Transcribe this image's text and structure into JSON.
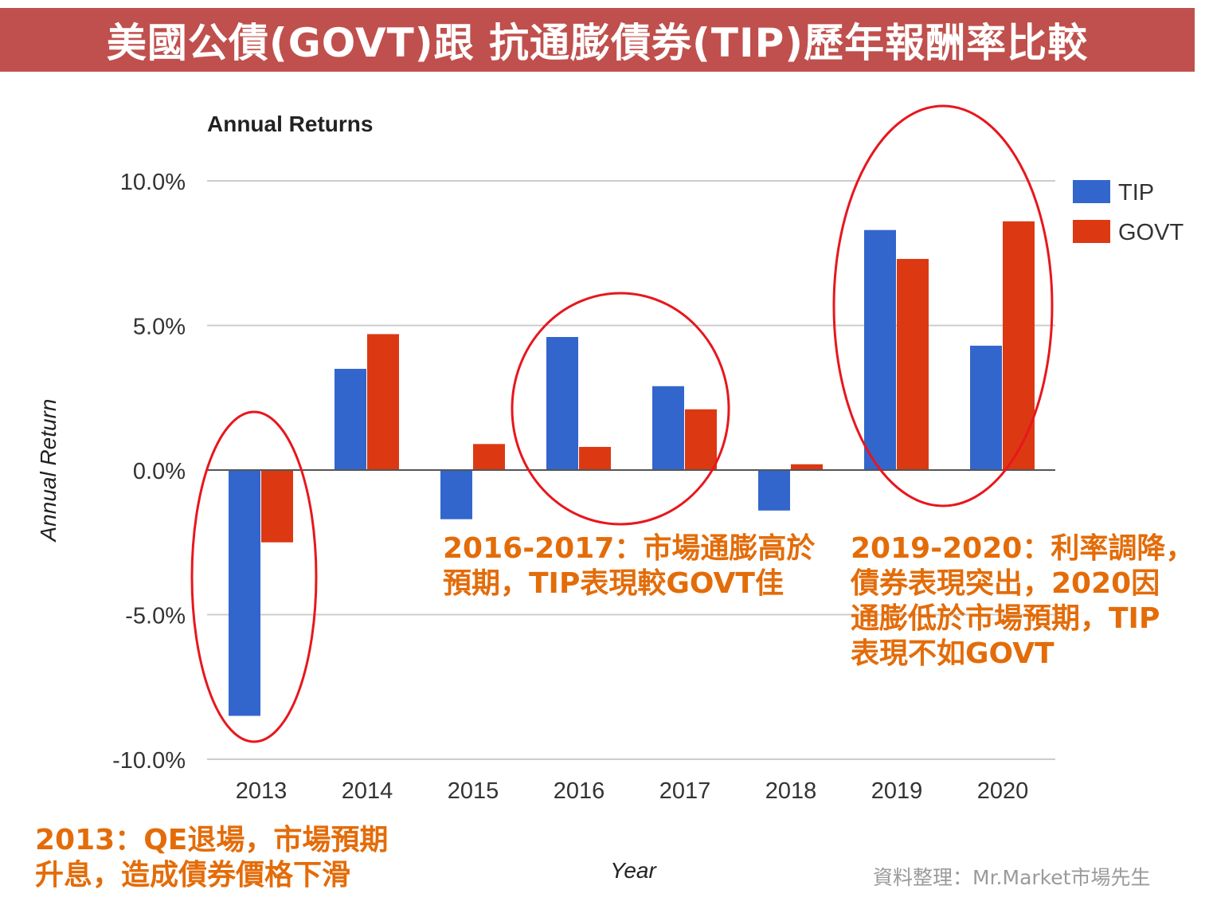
{
  "banner": {
    "title": "美國公債(GOVT)跟 抗通膨債券(TIP)歷年報酬率比較",
    "background": "#c0504d"
  },
  "chart_data": {
    "type": "bar",
    "title": "Annual Returns",
    "xlabel": "Year",
    "ylabel": "Annual Return",
    "categories": [
      "2013",
      "2014",
      "2015",
      "2016",
      "2017",
      "2018",
      "2019",
      "2020"
    ],
    "series": [
      {
        "name": "TIP",
        "color": "#3366cc",
        "values": [
          -8.5,
          3.5,
          -1.7,
          4.6,
          2.9,
          -1.4,
          8.3,
          4.3
        ]
      },
      {
        "name": "GOVT",
        "color": "#dc3912",
        "values": [
          -2.5,
          4.7,
          0.9,
          0.8,
          2.1,
          0.2,
          7.3,
          8.6
        ]
      }
    ],
    "ylim": [
      -10,
      10
    ],
    "yticks": [
      10,
      5,
      0,
      -5,
      -10
    ],
    "ytick_labels": [
      "10.0%",
      "5.0%",
      "0.0%",
      "-5.0%",
      "-10.0%"
    ],
    "grid": true,
    "legend_position": "top-right"
  },
  "annotations": {
    "color": "#e36c09",
    "circle_color": "#e8161d",
    "note_2013": "2013：QE退場，市場預期\n升息，造成債券價格下滑",
    "note_2016_2017": "2016-2017：市場通膨高於\n預期，TIP表現較GOVT佳",
    "note_2019_2020": "2019-2020：利率調降，\n債券表現突出，2020因\n通膨低於市場預期，TIP\n表現不如GOVT"
  },
  "source": "資料整理：Mr.Market市場先生"
}
